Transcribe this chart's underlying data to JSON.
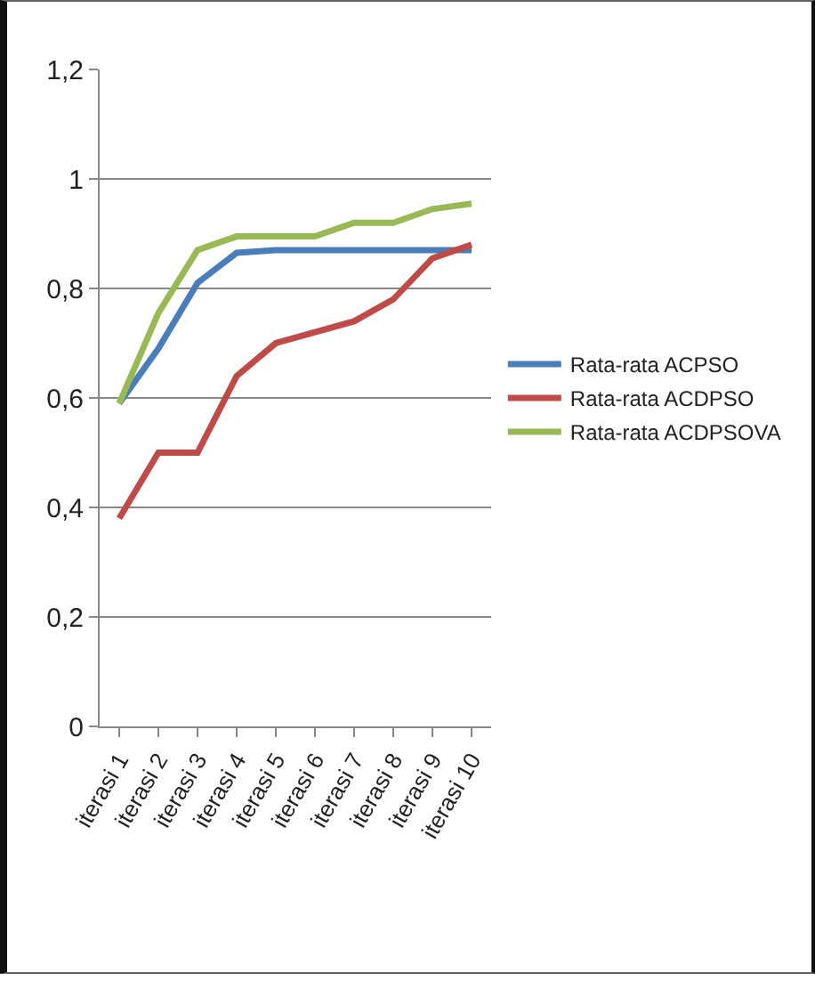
{
  "chart_data": {
    "type": "line",
    "categories": [
      "iterasi 1",
      "iterasi 2",
      "iterasi 3",
      "iterasi 4",
      "iterasi 5",
      "iterasi 6",
      "iterasi 7",
      "iterasi 8",
      "iterasi 9",
      "iterasi 10"
    ],
    "series": [
      {
        "name": "Rata-rata ACPSO",
        "color": "#4a7ebb",
        "values": [
          0.59,
          0.69,
          0.81,
          0.865,
          0.87,
          0.87,
          0.87,
          0.87,
          0.87,
          0.87
        ]
      },
      {
        "name": "Rata-rata ACDPSO",
        "color": "#be4b48",
        "values": [
          0.38,
          0.5,
          0.5,
          0.64,
          0.7,
          0.72,
          0.74,
          0.78,
          0.855,
          0.88
        ]
      },
      {
        "name": "Rata-rata ACDPSOVA",
        "color": "#98b954",
        "values": [
          0.59,
          0.755,
          0.87,
          0.895,
          0.895,
          0.895,
          0.92,
          0.92,
          0.945,
          0.955
        ]
      }
    ],
    "ylim": [
      0,
      1.2
    ],
    "yticks": [
      {
        "value": 0,
        "label": "0"
      },
      {
        "value": 0.2,
        "label": "0,2"
      },
      {
        "value": 0.4,
        "label": "0,4"
      },
      {
        "value": 0.6,
        "label": "0,6"
      },
      {
        "value": 0.8,
        "label": "0,8"
      },
      {
        "value": 1,
        "label": "1"
      },
      {
        "value": 1.2,
        "label": "1,2"
      }
    ],
    "grid": "y",
    "legend": "right",
    "marker": "none",
    "line_style": "solid"
  }
}
